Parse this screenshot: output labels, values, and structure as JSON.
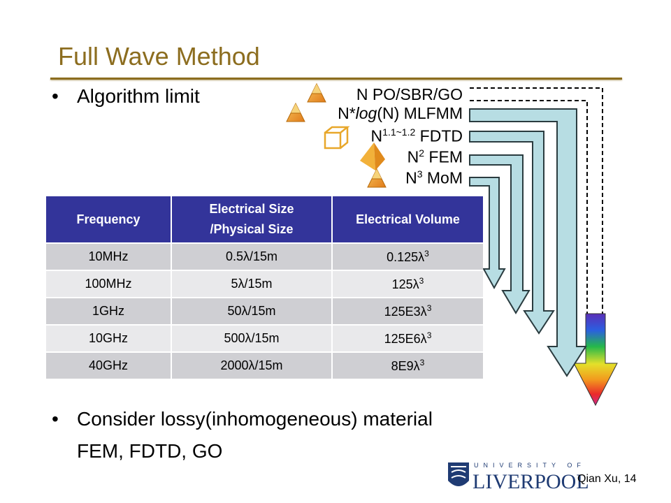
{
  "slide": {
    "title": "Full Wave Method",
    "bullets": [
      {
        "text": "Algorithm limit"
      },
      {
        "text": "Consider lossy(inhomogeneous) material",
        "continuation": "FEM, FDTD, GO"
      }
    ],
    "footer": "Qian Xu, 14",
    "logo": {
      "top": "UNIVERSITY OF",
      "word": "LIVERPOOL"
    }
  },
  "algorithms": [
    {
      "id": "po",
      "prefix": "N",
      "sup": "",
      "mid": "",
      "italic": "",
      "suffix": " PO/SBR/GO",
      "arrow": "rainbow-dashed",
      "icon": "pyramid-icon"
    },
    {
      "id": "mlfmm",
      "prefix": "N*",
      "sup": "",
      "mid": "",
      "italic": "log",
      "suffix": "(N) MLFMM",
      "arrow": "light-blue",
      "icon": "pyramid-icon"
    },
    {
      "id": "fdtd",
      "prefix": "N",
      "sup": "1.1~1.2",
      "mid": "",
      "italic": "",
      "suffix": " FDTD",
      "arrow": "light-blue",
      "icon": "cube-icon"
    },
    {
      "id": "fem",
      "prefix": "N",
      "sup": "2",
      "mid": "",
      "italic": "",
      "suffix": " FEM",
      "arrow": "light-blue",
      "icon": "tetrahedron-icon"
    },
    {
      "id": "mom",
      "prefix": "N",
      "sup": "3",
      "mid": "",
      "italic": "",
      "suffix": " MoM",
      "arrow": "light-blue",
      "icon": "pyramid-icon"
    }
  ],
  "table": {
    "headers": [
      "Frequency",
      "Electrical Size\n/Physical Size",
      "Electrical Volume"
    ],
    "header_lines": [
      [
        "Frequency"
      ],
      [
        "Electrical Size",
        "/Physical Size"
      ],
      [
        "Electrical Volume"
      ]
    ],
    "rows": [
      {
        "freq": "10MHz",
        "size": "0.5λ/15m",
        "vol": "0.125λ",
        "vol_sup": "3"
      },
      {
        "freq": "100MHz",
        "size": "5λ/15m",
        "vol": "125λ",
        "vol_sup": "3"
      },
      {
        "freq": "1GHz",
        "size": "50λ/15m",
        "vol": "125E3λ",
        "vol_sup": "3"
      },
      {
        "freq": "10GHz",
        "size": "500λ/15m",
        "vol": "125E6λ",
        "vol_sup": "3"
      },
      {
        "freq": "40GHz",
        "size": "2000λ/15m",
        "vol": "8E9λ",
        "vol_sup": "3"
      }
    ]
  },
  "colors": {
    "title": "#8c6d1f",
    "table_header": "#33349a",
    "arrow_fill": "#b7dde3",
    "arrow_stroke": "#2a3b3f"
  }
}
